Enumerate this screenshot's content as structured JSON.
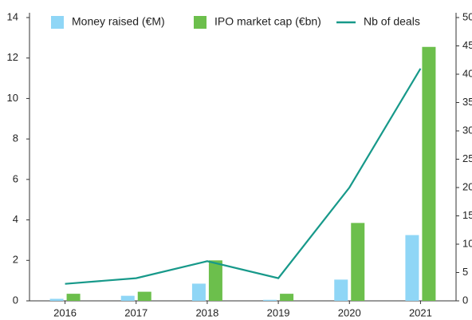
{
  "chart_data": {
    "type": "bar_line",
    "categories": [
      "2016",
      "2017",
      "2018",
      "2019",
      "2020",
      "2021"
    ],
    "series": [
      {
        "name": "Money raised (€M)",
        "color": "#8fd6f6",
        "type": "bar",
        "values": [
          0.1,
          0.25,
          0.85,
          0.05,
          1.05,
          3.25
        ]
      },
      {
        "name": "IPO market cap (€bn)",
        "color": "#6cbf4c",
        "type": "bar",
        "values": [
          0.35,
          0.45,
          2.0,
          0.35,
          3.85,
          12.55
        ]
      },
      {
        "name": "Nb of deals",
        "color": "#17998a",
        "type": "line",
        "axis": "y2",
        "values": [
          3,
          4,
          7,
          4,
          20,
          41
        ]
      }
    ],
    "ylim": [
      0,
      14
    ],
    "yticks": [
      0,
      2,
      4,
      6,
      8,
      10,
      12,
      14
    ],
    "y2lim": [
      0,
      50
    ],
    "y2ticks": [
      0,
      5,
      10,
      15,
      20,
      25,
      30,
      35,
      40,
      45,
      50
    ],
    "legend": "top"
  }
}
